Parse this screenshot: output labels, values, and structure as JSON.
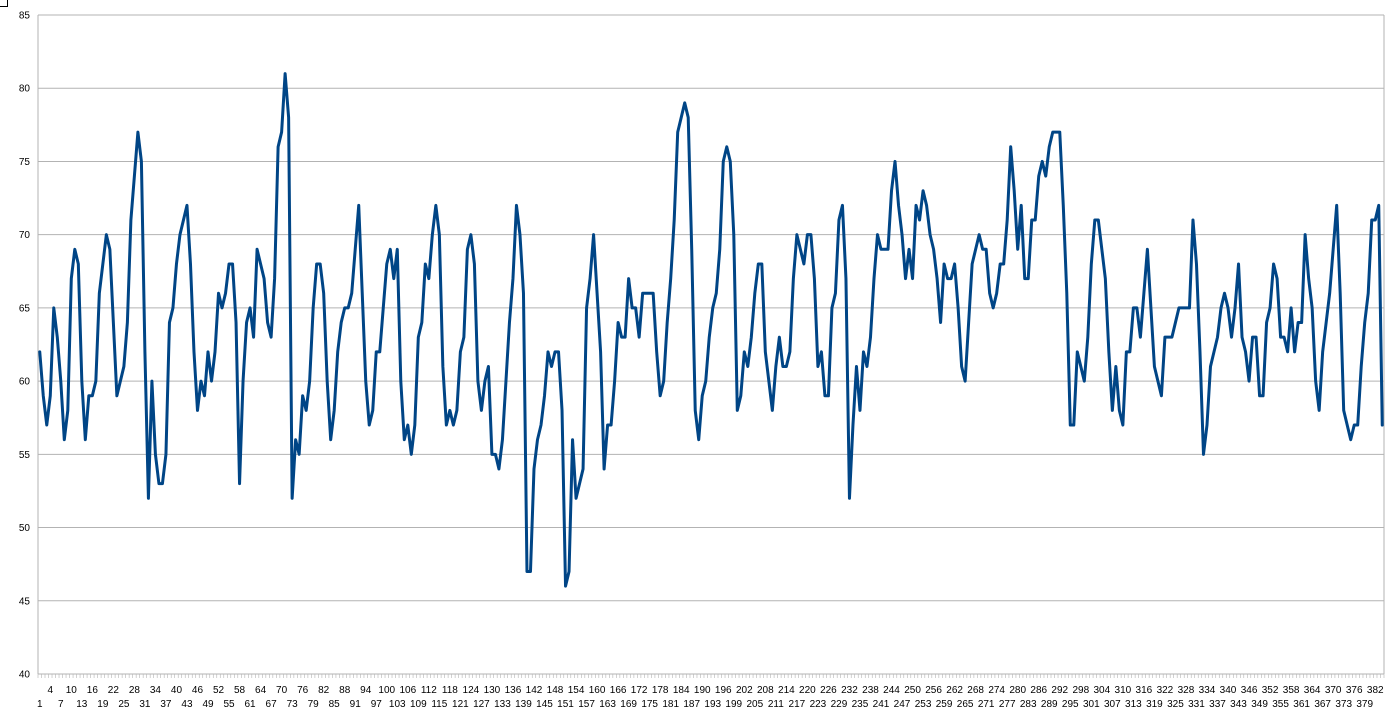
{
  "chart_data": {
    "type": "line",
    "title": "",
    "xlabel": "",
    "ylabel": "",
    "ylim": [
      40,
      85
    ],
    "y_step": 5,
    "grid": true,
    "legend": "none",
    "x_range": [
      1,
      383
    ],
    "x_label_rows": [
      [
        "1",
        "7",
        "13",
        "19",
        "25",
        "31",
        "37",
        "43",
        "49",
        "55",
        "61",
        "67",
        "73",
        "79",
        "85",
        "91",
        "97",
        "103",
        "109",
        "115",
        "121",
        "127",
        "133",
        "139",
        "145",
        "151",
        "157",
        "163",
        "169",
        "175",
        "181",
        "187",
        "193",
        "199",
        "205",
        "211",
        "217",
        "223",
        "229",
        "235",
        "241",
        "247",
        "253",
        "259",
        "265",
        "271",
        "277",
        "283",
        "289",
        "295",
        "301",
        "307",
        "313",
        "319",
        "325",
        "331",
        "337",
        "343",
        "349",
        "355",
        "361",
        "367",
        "373",
        "379"
      ],
      [
        "4",
        "10",
        "16",
        "22",
        "28",
        "34",
        "40",
        "46",
        "52",
        "58",
        "64",
        "70",
        "76",
        "82",
        "88",
        "94",
        "100",
        "106",
        "112",
        "118",
        "124",
        "130",
        "136",
        "142",
        "148",
        "154",
        "160",
        "166",
        "172",
        "178",
        "184",
        "190",
        "196",
        "202",
        "208",
        "214",
        "220",
        "226",
        "232",
        "238",
        "244",
        "250",
        "256",
        "262",
        "268",
        "274",
        "280",
        "286",
        "292",
        "298",
        "304",
        "310",
        "316",
        "322",
        "328",
        "334",
        "340",
        "346",
        "352",
        "358",
        "364",
        "370",
        "376",
        "382"
      ]
    ],
    "series": [
      {
        "color": "#004586",
        "values": [
          62,
          59,
          57,
          59,
          65,
          63,
          60,
          56,
          58,
          67,
          69,
          68,
          60,
          56,
          59,
          59,
          60,
          66,
          68,
          70,
          69,
          64,
          59,
          60,
          61,
          64,
          71,
          74,
          77,
          75,
          62,
          52,
          60,
          55,
          53,
          53,
          55,
          64,
          65,
          68,
          70,
          71,
          72,
          68,
          62,
          58,
          60,
          59,
          62,
          60,
          62,
          66,
          65,
          66,
          68,
          68,
          64,
          53,
          60,
          64,
          65,
          63,
          69,
          68,
          67,
          64,
          63,
          67,
          76,
          77,
          81,
          78,
          52,
          56,
          55,
          59,
          58,
          60,
          65,
          68,
          68,
          66,
          60,
          56,
          58,
          62,
          64,
          65,
          65,
          66,
          69,
          72,
          66,
          60,
          57,
          58,
          62,
          62,
          65,
          68,
          69,
          67,
          69,
          60,
          56,
          57,
          55,
          57,
          63,
          64,
          68,
          67,
          70,
          72,
          70,
          61,
          57,
          58,
          57,
          58,
          62,
          63,
          69,
          70,
          68,
          60,
          58,
          60,
          61,
          55,
          55,
          54,
          56,
          60,
          64,
          67,
          72,
          70,
          66,
          47,
          47,
          54,
          56,
          57,
          59,
          62,
          61,
          62,
          62,
          58,
          46,
          47,
          56,
          52,
          53,
          54,
          65,
          67,
          70,
          66,
          62,
          54,
          57,
          57,
          60,
          64,
          63,
          63,
          67,
          65,
          65,
          63,
          66,
          66,
          66,
          66,
          62,
          59,
          60,
          64,
          67,
          71,
          77,
          78,
          79,
          78,
          69,
          58,
          56,
          59,
          60,
          63,
          65,
          66,
          69,
          75,
          76,
          75,
          70,
          58,
          59,
          62,
          61,
          63,
          66,
          68,
          68,
          62,
          60,
          58,
          61,
          63,
          61,
          61,
          62,
          67,
          70,
          69,
          68,
          70,
          70,
          67,
          61,
          62,
          59,
          59,
          65,
          66,
          71,
          72,
          67,
          52,
          57,
          61,
          58,
          62,
          61,
          63,
          67,
          70,
          69,
          69,
          69,
          73,
          75,
          72,
          70,
          67,
          69,
          67,
          72,
          71,
          73,
          72,
          70,
          69,
          67,
          64,
          68,
          67,
          67,
          68,
          65,
          61,
          60,
          64,
          68,
          69,
          70,
          69,
          69,
          66,
          65,
          66,
          68,
          68,
          71,
          76,
          73,
          69,
          72,
          67,
          67,
          71,
          71,
          74,
          75,
          74,
          76,
          77,
          77,
          77,
          72,
          66,
          57,
          57,
          62,
          61,
          60,
          63,
          68,
          71,
          71,
          69,
          67,
          62,
          58,
          61,
          58,
          57,
          62,
          62,
          65,
          65,
          63,
          66,
          69,
          65,
          61,
          60,
          59,
          63,
          63,
          63,
          64,
          65,
          65,
          65,
          65,
          71,
          68,
          62,
          55,
          57,
          61,
          62,
          63,
          65,
          66,
          65,
          63,
          65,
          68,
          63,
          62,
          60,
          63,
          63,
          59,
          59,
          64,
          65,
          68,
          67,
          63,
          63,
          62,
          65,
          62,
          64,
          64,
          70,
          67,
          65,
          60,
          58,
          62,
          64,
          66,
          69,
          72,
          66,
          58,
          57,
          56,
          57,
          57,
          61,
          64,
          66,
          71,
          71,
          72,
          57
        ]
      }
    ]
  }
}
